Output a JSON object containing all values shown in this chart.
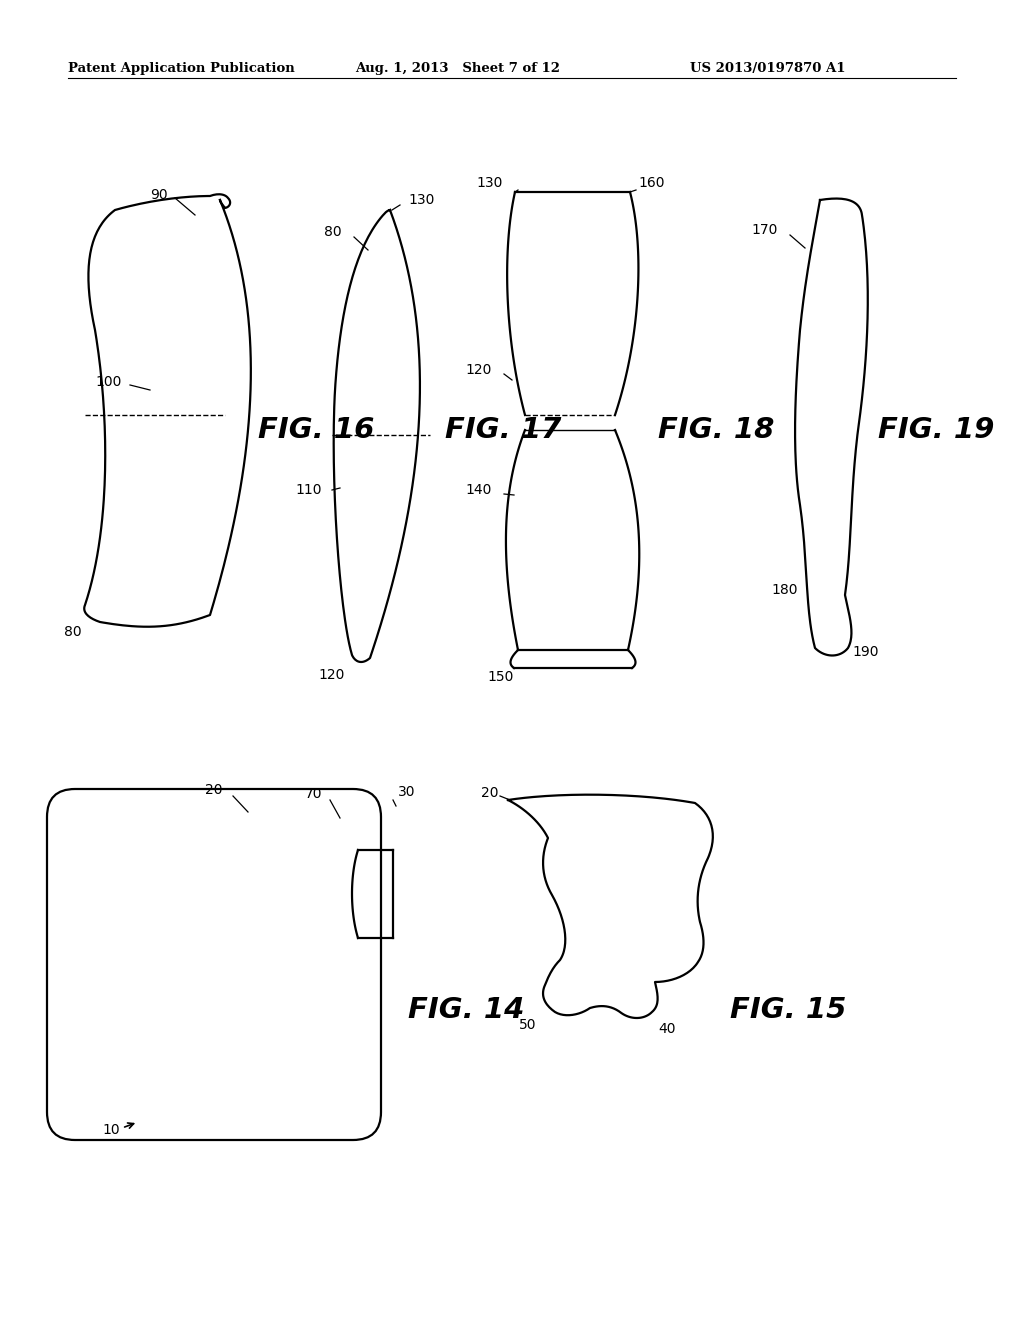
{
  "bg_color": "#ffffff",
  "header_left": "Patent Application Publication",
  "header_mid": "Aug. 1, 2013   Sheet 7 of 12",
  "header_right": "US 2013/0197870 A1"
}
